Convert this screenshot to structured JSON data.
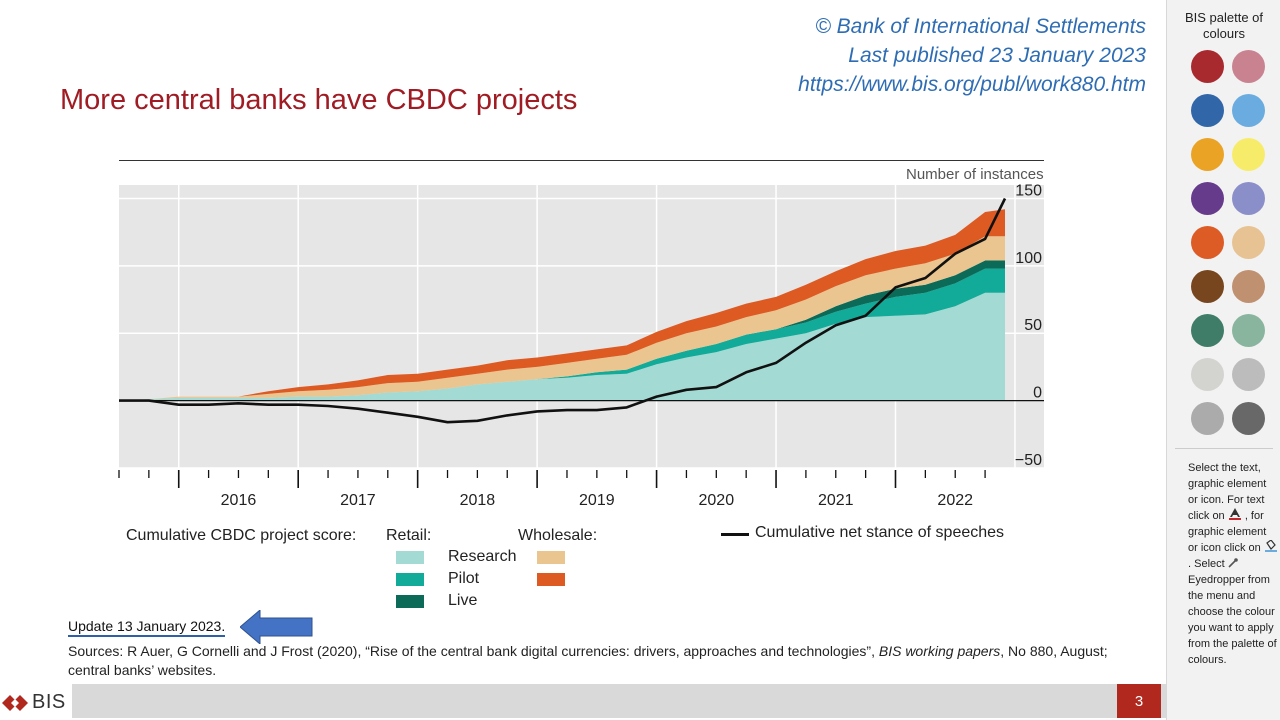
{
  "slide": {
    "copyright_lines": [
      "© Bank of International Settlements",
      "Last published 23 January 2023",
      "https://www.bis.org/publ/work880.htm"
    ],
    "title": "More central banks have CBDC projects",
    "update_note": "Update 13 January 2023.",
    "sources_prefix": "Sources: R Auer, G Cornelli and J Frost (2020), “Rise of the central bank digital currencies: drivers, approaches and  technologies”, ",
    "sources_italic": "BIS working papers",
    "sources_suffix": ", No 880, August; central banks’ websites.",
    "footer_logo": "BIS",
    "page_number": "3"
  },
  "legend": {
    "heading": "Cumulative CBDC project score:",
    "retail_heading": "Retail:",
    "wholesale_heading": "Wholesale:",
    "research": "Research",
    "pilot": "Pilot",
    "live": "Live",
    "speeches": "Cumulative net stance of speeches"
  },
  "colors": {
    "retail_research": "#a3dbd4",
    "retail_pilot": "#12aa98",
    "retail_live": "#0b6b58",
    "wholesale_research": "#ebc590",
    "wholesale_pilot": "#dd5a22",
    "speeches_line": "#111111",
    "title_red": "#a01c24",
    "link_blue": "#2e6db4"
  },
  "chart_data": {
    "type": "area",
    "ylabel": "Number of instances",
    "ylim": [
      -50,
      160
    ],
    "yticks": [
      -50,
      0,
      50,
      100,
      150
    ],
    "x_tick_labels": [
      "2016",
      "2017",
      "2018",
      "2019",
      "2020",
      "2021",
      "2022"
    ],
    "grid": true,
    "x": [
      "2015-07",
      "2015-10",
      "2016-01",
      "2016-04",
      "2016-07",
      "2016-10",
      "2017-01",
      "2017-04",
      "2017-07",
      "2017-10",
      "2018-01",
      "2018-04",
      "2018-07",
      "2018-10",
      "2019-01",
      "2019-04",
      "2019-07",
      "2019-10",
      "2020-01",
      "2020-04",
      "2020-07",
      "2020-10",
      "2021-01",
      "2021-04",
      "2021-07",
      "2021-10",
      "2022-01",
      "2022-04",
      "2022-07",
      "2022-10",
      "2022-12"
    ],
    "series": [
      {
        "name": "Research",
        "group": "Retail",
        "values": [
          0,
          1,
          2,
          2,
          2,
          2,
          3,
          3,
          4,
          6,
          7,
          9,
          12,
          14,
          16,
          17,
          19,
          20,
          27,
          32,
          36,
          42,
          46,
          50,
          57,
          62,
          63,
          64,
          70,
          80,
          80
        ]
      },
      {
        "name": "Pilot",
        "group": "Retail",
        "values": [
          0,
          0,
          0,
          0,
          0,
          0,
          0,
          0,
          0,
          0,
          0,
          0,
          0,
          0,
          0,
          1,
          2,
          3,
          4,
          5,
          6,
          7,
          7,
          8,
          9,
          10,
          14,
          16,
          17,
          18,
          18
        ]
      },
      {
        "name": "Live",
        "group": "Retail",
        "values": [
          0,
          0,
          0,
          0,
          0,
          0,
          0,
          0,
          0,
          0,
          0,
          0,
          0,
          0,
          0,
          0,
          0,
          0,
          0,
          0,
          0,
          0,
          0,
          2,
          4,
          6,
          6,
          6,
          6,
          6,
          6
        ]
      },
      {
        "name": "Research",
        "group": "Wholesale",
        "values": [
          0,
          0,
          1,
          1,
          1,
          3,
          4,
          5,
          6,
          7,
          7,
          8,
          8,
          9,
          9,
          10,
          10,
          11,
          12,
          13,
          13,
          13,
          14,
          15,
          15,
          15,
          15,
          16,
          16,
          18,
          18
        ]
      },
      {
        "name": "Pilot",
        "group": "Wholesale",
        "values": [
          0,
          0,
          0,
          0,
          0,
          2,
          3,
          4,
          5,
          6,
          6,
          6,
          6,
          7,
          7,
          7,
          7,
          7,
          8,
          9,
          10,
          10,
          10,
          11,
          11,
          12,
          13,
          13,
          14,
          18,
          20
        ]
      },
      {
        "name": "Cumulative net stance of speeches",
        "type": "line",
        "values": [
          0,
          0,
          -3,
          -3,
          -2,
          -3,
          -3,
          -4,
          -6,
          -9,
          -12,
          -16,
          -15,
          -11,
          -8,
          -7,
          -7,
          -5,
          3,
          8,
          10,
          21,
          28,
          43,
          56,
          63,
          84,
          91,
          109,
          120,
          150
        ]
      }
    ]
  },
  "palette_panel": {
    "title": "BIS palette of colours",
    "swatches": [
      {
        "name": "dark-red",
        "color": "#a82a2f"
      },
      {
        "name": "rose",
        "color": "#c98290"
      },
      {
        "name": "blue",
        "color": "#3166a9"
      },
      {
        "name": "light-blue",
        "color": "#6aace0"
      },
      {
        "name": "amber",
        "color": "#eaa325"
      },
      {
        "name": "yellow",
        "color": "#f7ec6a"
      },
      {
        "name": "purple",
        "color": "#673b8c"
      },
      {
        "name": "lavender",
        "color": "#8b8fc9"
      },
      {
        "name": "orange",
        "color": "#dd5b25"
      },
      {
        "name": "sand",
        "color": "#e7c293"
      },
      {
        "name": "brown",
        "color": "#77461f"
      },
      {
        "name": "tan",
        "color": "#bf9170"
      },
      {
        "name": "green",
        "color": "#3f7d69"
      },
      {
        "name": "sage",
        "color": "#89b59e"
      },
      {
        "name": "light-grey",
        "color": "#d3d3d0"
      },
      {
        "name": "silver",
        "color": "#bcbcbc"
      },
      {
        "name": "grey",
        "color": "#ababab"
      },
      {
        "name": "dark-grey",
        "color": "#686868"
      }
    ],
    "help_1": "Select the text, graphic element or icon. For text click on",
    "help_2": ", for graphic element or icon click on",
    "help_3": ". Select",
    "help_4": "Eyedropper from the menu and choose the colour you want to apply from the palette of colours."
  }
}
